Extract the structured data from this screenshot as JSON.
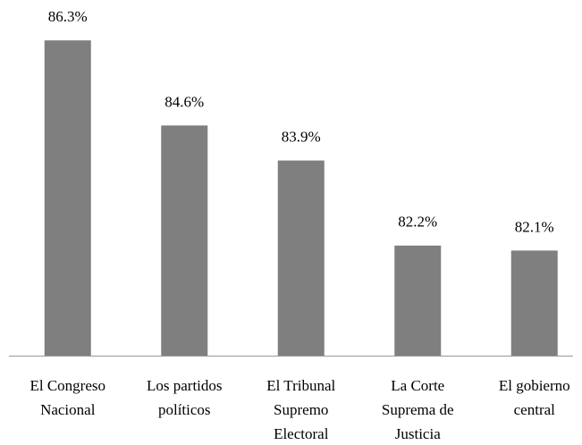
{
  "chart_data": {
    "type": "bar",
    "categories": [
      [
        "El Congreso",
        "Nacional"
      ],
      [
        "Los partidos",
        "políticos"
      ],
      [
        "El Tribunal",
        "Supremo",
        "Electoral"
      ],
      [
        "La Corte",
        "Suprema de",
        "Justicia"
      ],
      [
        "El gobierno",
        "central"
      ]
    ],
    "values": [
      86.3,
      84.6,
      83.9,
      82.2,
      82.1
    ],
    "value_labels": [
      "86.3%",
      "84.6%",
      "83.9%",
      "82.2%",
      "82.1%"
    ],
    "color": "#7f7f7f",
    "ylim": [
      80,
      87
    ]
  }
}
